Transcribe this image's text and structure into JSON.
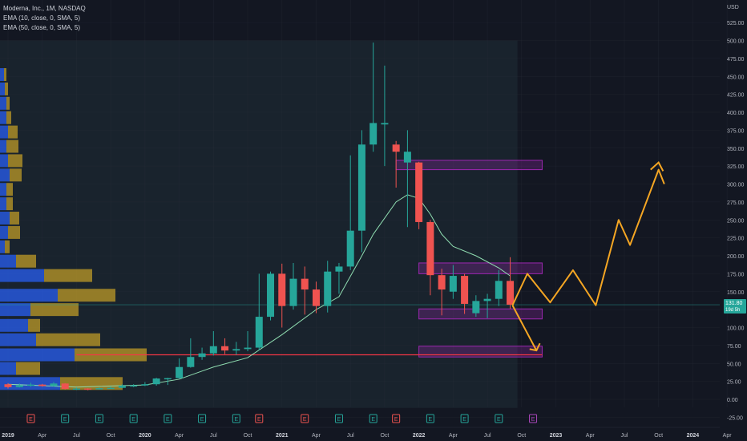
{
  "legend": {
    "symbol": "Moderna, Inc., 1M, NASDAQ",
    "ema1": "EMA (10, close, 0, SMA, 5)",
    "ema2": "EMA (50, close, 0, SMA, 5)"
  },
  "axis": {
    "currency": "USD",
    "price_label_top": "131.80",
    "price_label_bottom": "19d 5h"
  },
  "colors": {
    "background": "#131722",
    "panel": "#19232d",
    "grid": "#2a2e39",
    "up": "#26a69a",
    "down": "#ef5350",
    "ema": "#8fdcb0",
    "zone": "#9c27b0",
    "support": "#f23645",
    "projection": "#f5a623",
    "vp_up": "#2962ff",
    "vp_down": "#c9a227",
    "text": "#b2b5be"
  },
  "chart_data": {
    "type": "candlestick",
    "title": "Moderna, Inc., 1M, NASDAQ",
    "y_unit": "USD",
    "ylim": [
      -25,
      550
    ],
    "y_ticks": [
      "-25.00",
      "0.00",
      "25.00",
      "50.00",
      "75.00",
      "100.00",
      "125.00",
      "150.00",
      "175.00",
      "200.00",
      "225.00",
      "250.00",
      "275.00",
      "300.00",
      "325.00",
      "350.00",
      "375.00",
      "400.00",
      "425.00",
      "450.00",
      "475.00",
      "500.00",
      "525.00"
    ],
    "x_labels": [
      "2019",
      "Apr",
      "Jul",
      "Oct",
      "2020",
      "Apr",
      "Jul",
      "Oct",
      "2021",
      "Apr",
      "Jul",
      "Oct",
      "2022",
      "Apr",
      "Jul",
      "Oct",
      "2023",
      "Apr",
      "Jul",
      "Oct",
      "2024",
      "Apr"
    ],
    "x_label_months": [
      0,
      3,
      6,
      9,
      12,
      15,
      18,
      21,
      24,
      27,
      30,
      33,
      36,
      39,
      42,
      45,
      48,
      51,
      54,
      57,
      60,
      63
    ],
    "earnings_markers": [
      {
        "month": 2,
        "kind": "down",
        "label": "E"
      },
      {
        "month": 5,
        "kind": "up",
        "label": "E"
      },
      {
        "month": 8,
        "kind": "up",
        "label": "E"
      },
      {
        "month": 11,
        "kind": "up",
        "label": "E"
      },
      {
        "month": 14,
        "kind": "up",
        "label": "E"
      },
      {
        "month": 17,
        "kind": "up",
        "label": "E"
      },
      {
        "month": 20,
        "kind": "up",
        "label": "E"
      },
      {
        "month": 22,
        "kind": "down",
        "label": "E"
      },
      {
        "month": 26,
        "kind": "down",
        "label": "E"
      },
      {
        "month": 29,
        "kind": "up",
        "label": "E"
      },
      {
        "month": 32,
        "kind": "up",
        "label": "E"
      },
      {
        "month": 34,
        "kind": "down",
        "label": "E"
      },
      {
        "month": 37,
        "kind": "up",
        "label": "E"
      },
      {
        "month": 40,
        "kind": "up",
        "label": "E"
      },
      {
        "month": 43,
        "kind": "up",
        "label": "E"
      },
      {
        "month": 46,
        "kind": "future",
        "label": "E"
      }
    ],
    "candles": [
      {
        "m": 0,
        "o": 21.0,
        "h": 22.5,
        "l": 15.0,
        "c": 17.0
      },
      {
        "m": 1,
        "o": 17.0,
        "h": 22.0,
        "l": 16.5,
        "c": 19.5
      },
      {
        "m": 2,
        "o": 19.5,
        "h": 23.0,
        "l": 17.5,
        "c": 20.5
      },
      {
        "m": 3,
        "o": 20.5,
        "h": 21.5,
        "l": 17.5,
        "c": 18.5
      },
      {
        "m": 4,
        "o": 18.5,
        "h": 24.0,
        "l": 18.0,
        "c": 22.0
      },
      {
        "m": 5,
        "o": 22.0,
        "h": 22.5,
        "l": 13.5,
        "c": 14.5
      },
      {
        "m": 6,
        "o": 14.5,
        "h": 16.5,
        "l": 13.0,
        "c": 15.0
      },
      {
        "m": 7,
        "o": 15.0,
        "h": 15.5,
        "l": 12.5,
        "c": 14.0
      },
      {
        "m": 8,
        "o": 14.0,
        "h": 16.5,
        "l": 13.5,
        "c": 15.5
      },
      {
        "m": 9,
        "o": 15.5,
        "h": 18.0,
        "l": 15.0,
        "c": 16.0
      },
      {
        "m": 10,
        "o": 16.0,
        "h": 21.0,
        "l": 15.5,
        "c": 19.0
      },
      {
        "m": 11,
        "o": 19.0,
        "h": 21.0,
        "l": 17.0,
        "c": 19.5
      },
      {
        "m": 12,
        "o": 19.5,
        "h": 24.0,
        "l": 18.5,
        "c": 21.0
      },
      {
        "m": 13,
        "o": 21.0,
        "h": 30.0,
        "l": 19.0,
        "c": 29.0
      },
      {
        "m": 14,
        "o": 29.0,
        "h": 30.0,
        "l": 20.0,
        "c": 29.5
      },
      {
        "m": 15,
        "o": 29.5,
        "h": 57.0,
        "l": 29.0,
        "c": 45.0
      },
      {
        "m": 16,
        "o": 45.0,
        "h": 85.0,
        "l": 44.0,
        "c": 59.0
      },
      {
        "m": 17,
        "o": 59.0,
        "h": 72.0,
        "l": 55.0,
        "c": 64.0
      },
      {
        "m": 18,
        "o": 64.0,
        "h": 95.0,
        "l": 61.0,
        "c": 74.0
      },
      {
        "m": 19,
        "o": 74.0,
        "h": 85.0,
        "l": 63.0,
        "c": 68.0
      },
      {
        "m": 20,
        "o": 68.0,
        "h": 80.0,
        "l": 62.0,
        "c": 70.0
      },
      {
        "m": 21,
        "o": 70.0,
        "h": 95.0,
        "l": 67.0,
        "c": 72.0
      },
      {
        "m": 22,
        "o": 72.0,
        "h": 175.0,
        "l": 68.0,
        "c": 115.0
      },
      {
        "m": 23,
        "o": 115.0,
        "h": 178.0,
        "l": 110.0,
        "c": 175.0
      },
      {
        "m": 24,
        "o": 175.0,
        "h": 189.0,
        "l": 100.0,
        "c": 130.0
      },
      {
        "m": 25,
        "o": 130.0,
        "h": 190.0,
        "l": 125.0,
        "c": 168.0
      },
      {
        "m": 26,
        "o": 168.0,
        "h": 185.0,
        "l": 118.0,
        "c": 153.0
      },
      {
        "m": 27,
        "o": 153.0,
        "h": 164.0,
        "l": 120.0,
        "c": 130.0
      },
      {
        "m": 28,
        "o": 130.0,
        "h": 193.0,
        "l": 121.0,
        "c": 178.0
      },
      {
        "m": 29,
        "o": 178.0,
        "h": 190.0,
        "l": 147.0,
        "c": 185.0
      },
      {
        "m": 30,
        "o": 185.0,
        "h": 340.0,
        "l": 180.0,
        "c": 235.0
      },
      {
        "m": 31,
        "o": 235.0,
        "h": 375.0,
        "l": 205.0,
        "c": 355.0
      },
      {
        "m": 32,
        "o": 355.0,
        "h": 497.0,
        "l": 345.0,
        "c": 385.0
      },
      {
        "m": 33,
        "o": 383.0,
        "h": 465.0,
        "l": 325.0,
        "c": 385.0
      },
      {
        "m": 34,
        "o": 355.0,
        "h": 360.0,
        "l": 295.0,
        "c": 345.0
      },
      {
        "m": 35,
        "o": 330.0,
        "h": 375.0,
        "l": 240.0,
        "c": 345.0
      },
      {
        "m": 36,
        "o": 330.0,
        "h": 331.0,
        "l": 237.0,
        "c": 247.0
      },
      {
        "m": 37,
        "o": 247.0,
        "h": 250.0,
        "l": 145.0,
        "c": 173.0
      },
      {
        "m": 38,
        "o": 173.0,
        "h": 182.0,
        "l": 117.0,
        "c": 153.0
      },
      {
        "m": 39,
        "o": 150.0,
        "h": 187.0,
        "l": 140.0,
        "c": 172.0
      },
      {
        "m": 40,
        "o": 172.0,
        "h": 175.0,
        "l": 119.0,
        "c": 133.0
      },
      {
        "m": 41,
        "o": 120.0,
        "h": 145.0,
        "l": 115.0,
        "c": 137.0
      },
      {
        "m": 42,
        "o": 137.0,
        "h": 147.0,
        "l": 113.0,
        "c": 140.0
      },
      {
        "m": 43,
        "o": 140.0,
        "h": 180.0,
        "l": 130.0,
        "c": 165.0
      },
      {
        "m": 44,
        "o": 165.0,
        "h": 198.0,
        "l": 126.0,
        "c": 131.8
      }
    ],
    "ema10": [
      [
        0,
        21
      ],
      [
        6,
        17
      ],
      [
        12,
        20
      ],
      [
        15,
        28
      ],
      [
        18,
        45
      ],
      [
        21,
        58
      ],
      [
        24,
        90
      ],
      [
        27,
        125
      ],
      [
        29,
        143
      ],
      [
        31,
        200
      ],
      [
        32,
        230
      ],
      [
        34,
        275
      ],
      [
        35,
        285
      ],
      [
        36,
        280
      ],
      [
        37,
        258
      ],
      [
        38,
        230
      ],
      [
        39,
        213
      ],
      [
        41,
        200
      ],
      [
        43,
        183
      ],
      [
        44,
        172
      ]
    ],
    "volume_profile": [
      {
        "p": 452.5,
        "up": 5,
        "down": 3
      },
      {
        "p": 432.5,
        "up": 6,
        "down": 4
      },
      {
        "p": 412.5,
        "up": 8,
        "down": 4
      },
      {
        "p": 392.5,
        "up": 8,
        "down": 6
      },
      {
        "p": 372.5,
        "up": 10,
        "down": 12
      },
      {
        "p": 352.5,
        "up": 8,
        "down": 15
      },
      {
        "p": 332.5,
        "up": 10,
        "down": 18
      },
      {
        "p": 312.5,
        "up": 12,
        "down": 15
      },
      {
        "p": 292.5,
        "up": 8,
        "down": 8
      },
      {
        "p": 272.5,
        "up": 8,
        "down": 8
      },
      {
        "p": 252.5,
        "up": 12,
        "down": 12
      },
      {
        "p": 232.5,
        "up": 10,
        "down": 15
      },
      {
        "p": 212.5,
        "up": 6,
        "down": 6
      },
      {
        "p": 192.5,
        "up": 20,
        "down": 25
      },
      {
        "p": 172.5,
        "up": 55,
        "down": 60
      },
      {
        "p": 145,
        "up": 72,
        "down": 72
      },
      {
        "p": 125,
        "up": 38,
        "down": 60
      },
      {
        "p": 103,
        "up": 35,
        "down": 15
      },
      {
        "p": 83,
        "up": 45,
        "down": 80
      },
      {
        "p": 62,
        "up": 93,
        "down": 90
      },
      {
        "p": 43,
        "up": 20,
        "down": 30
      },
      {
        "p": 22,
        "up": 75,
        "down": 78
      }
    ],
    "zones": [
      {
        "from_month": 34,
        "to_month": 46.8,
        "top": 333,
        "bottom": 320
      },
      {
        "from_month": 36,
        "to_month": 46.8,
        "top": 190,
        "bottom": 175
      },
      {
        "from_month": 36,
        "to_month": 46.8,
        "top": 126,
        "bottom": 112
      },
      {
        "from_month": 36,
        "to_month": 46.8,
        "top": 74,
        "bottom": 59
      }
    ],
    "support_line": {
      "price": 62,
      "from_month": 6,
      "to_month": 46.8
    },
    "current_price": 131.8,
    "projection_up": [
      [
        44.2,
        131
      ],
      [
        45.5,
        175
      ],
      [
        47.5,
        135
      ],
      [
        49.5,
        180
      ],
      [
        51.5,
        131
      ],
      [
        53.5,
        250
      ],
      [
        54.5,
        215
      ],
      [
        57,
        320
      ],
      [
        57.5,
        300
      ]
    ],
    "projection_down": [
      [
        44.2,
        131
      ],
      [
        46.3,
        68
      ]
    ],
    "projection_down_arrow": [
      [
        45.7,
        70
      ],
      [
        46.3,
        68
      ],
      [
        46.6,
        78
      ]
    ],
    "projection_up_arrow": [
      [
        56.3,
        320
      ],
      [
        57,
        330
      ],
      [
        57.4,
        318
      ]
    ]
  }
}
